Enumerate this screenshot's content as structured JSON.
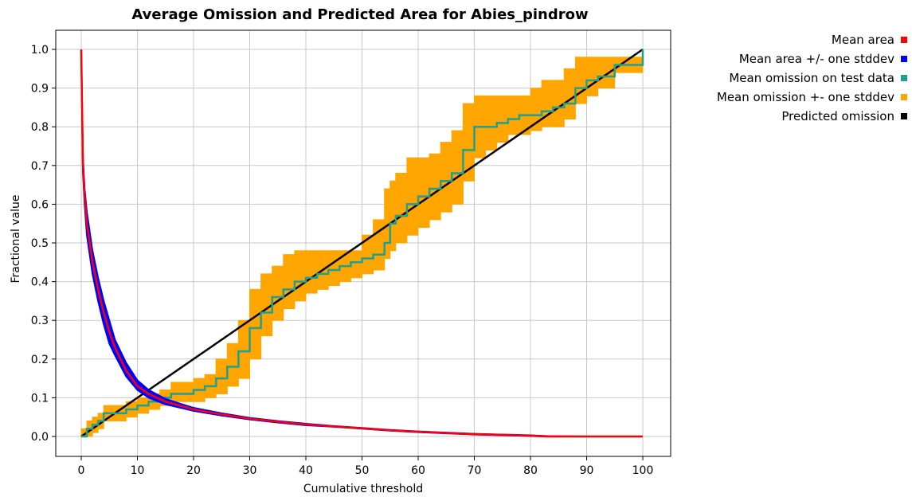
{
  "chart_data": {
    "type": "line",
    "title": "Average Omission and Predicted Area for Abies_pindrow",
    "xlabel": "Cumulative threshold",
    "ylabel": "Fractional value",
    "xlim": [
      0,
      100
    ],
    "ylim": [
      0,
      1
    ],
    "grid": true,
    "legend_position": "right",
    "x_ticks": [
      "0",
      "10",
      "20",
      "30",
      "40",
      "50",
      "60",
      "70",
      "80",
      "90",
      "100"
    ],
    "y_ticks": [
      "0.0",
      "0.1",
      "0.2",
      "0.3",
      "0.4",
      "0.5",
      "0.6",
      "0.7",
      "0.8",
      "0.9",
      "1.0"
    ],
    "legend": [
      {
        "label": "Mean area",
        "color": "#ff0000"
      },
      {
        "label": "Mean area +/- one stddev",
        "color": "#0000ff"
      },
      {
        "label": "Mean omission on test data",
        "color": "#20a090"
      },
      {
        "label": "Mean omission +- one stddev",
        "color": "#ffa500"
      },
      {
        "label": "Predicted omission",
        "color": "#000000"
      }
    ],
    "series": [
      {
        "name": "Mean area",
        "color": "#ff0000",
        "x": [
          0,
          0.3,
          0.6,
          1,
          2,
          3,
          4,
          5,
          6,
          8,
          10,
          12,
          15,
          18,
          20,
          25,
          30,
          35,
          40,
          45,
          50,
          55,
          60,
          65,
          70,
          75,
          80,
          83,
          90,
          100
        ],
        "y": [
          1.0,
          0.7,
          0.62,
          0.55,
          0.45,
          0.38,
          0.32,
          0.27,
          0.23,
          0.17,
          0.13,
          0.11,
          0.09,
          0.078,
          0.07,
          0.057,
          0.046,
          0.038,
          0.031,
          0.026,
          0.021,
          0.016,
          0.012,
          0.009,
          0.006,
          0.004,
          0.002,
          0.0,
          0.0,
          0.0
        ]
      },
      {
        "name": "Mean area +/- one stddev",
        "color": "#0000ff",
        "x": [
          0,
          0.3,
          0.6,
          1,
          2,
          3,
          4,
          5,
          6,
          8,
          10,
          12,
          15,
          18,
          20,
          25,
          30,
          35,
          40,
          45,
          50,
          55,
          60,
          65,
          70,
          75,
          80,
          83,
          90,
          100
        ],
        "upper": [
          1.0,
          0.72,
          0.64,
          0.58,
          0.48,
          0.41,
          0.35,
          0.3,
          0.25,
          0.19,
          0.145,
          0.12,
          0.097,
          0.083,
          0.074,
          0.06,
          0.048,
          0.04,
          0.033,
          0.027,
          0.022,
          0.017,
          0.013,
          0.01,
          0.007,
          0.005,
          0.003,
          0.001,
          0.0,
          0.0
        ],
        "lower": [
          1.0,
          0.68,
          0.6,
          0.52,
          0.42,
          0.35,
          0.29,
          0.24,
          0.21,
          0.155,
          0.12,
          0.1,
          0.083,
          0.073,
          0.066,
          0.054,
          0.044,
          0.036,
          0.029,
          0.025,
          0.02,
          0.015,
          0.011,
          0.008,
          0.005,
          0.003,
          0.001,
          0.0,
          0.0,
          0.0
        ]
      },
      {
        "name": "Mean omission on test data",
        "color": "#20a090",
        "x": [
          0,
          1,
          2,
          3,
          4,
          8,
          10,
          12,
          14,
          16,
          20,
          22,
          24,
          26,
          28,
          30,
          32,
          34,
          36,
          38,
          40,
          42,
          44,
          46,
          48,
          50,
          52,
          54,
          55,
          56,
          58,
          60,
          62,
          64,
          66,
          68,
          70,
          72,
          74,
          76,
          78,
          80,
          82,
          84,
          86,
          88,
          90,
          92,
          95,
          100
        ],
        "y": [
          0.0,
          0.02,
          0.03,
          0.04,
          0.06,
          0.07,
          0.08,
          0.09,
          0.1,
          0.11,
          0.12,
          0.13,
          0.15,
          0.18,
          0.22,
          0.28,
          0.32,
          0.36,
          0.38,
          0.4,
          0.41,
          0.42,
          0.43,
          0.44,
          0.45,
          0.46,
          0.47,
          0.5,
          0.55,
          0.57,
          0.6,
          0.62,
          0.64,
          0.66,
          0.68,
          0.74,
          0.8,
          0.8,
          0.81,
          0.82,
          0.83,
          0.83,
          0.84,
          0.85,
          0.86,
          0.9,
          0.92,
          0.93,
          0.96,
          1.0
        ]
      },
      {
        "name": "Mean omission +- one stddev",
        "color": "#ffa500",
        "x": [
          0,
          1,
          2,
          3,
          4,
          8,
          10,
          12,
          14,
          16,
          20,
          22,
          24,
          26,
          28,
          30,
          32,
          34,
          36,
          38,
          40,
          42,
          44,
          46,
          48,
          50,
          52,
          54,
          55,
          56,
          58,
          60,
          62,
          64,
          66,
          68,
          70,
          72,
          74,
          76,
          78,
          80,
          82,
          84,
          86,
          88,
          90,
          92,
          95,
          100
        ],
        "upper": [
          0.02,
          0.04,
          0.05,
          0.06,
          0.08,
          0.09,
          0.1,
          0.11,
          0.12,
          0.14,
          0.15,
          0.16,
          0.2,
          0.24,
          0.3,
          0.38,
          0.42,
          0.44,
          0.47,
          0.48,
          0.48,
          0.48,
          0.48,
          0.48,
          0.48,
          0.52,
          0.56,
          0.64,
          0.66,
          0.68,
          0.72,
          0.72,
          0.73,
          0.76,
          0.79,
          0.86,
          0.88,
          0.88,
          0.88,
          0.88,
          0.88,
          0.9,
          0.92,
          0.92,
          0.95,
          0.98,
          0.98,
          0.98,
          0.98,
          1.0
        ],
        "lower": [
          0.0,
          0.0,
          0.01,
          0.02,
          0.04,
          0.05,
          0.06,
          0.07,
          0.08,
          0.09,
          0.09,
          0.1,
          0.11,
          0.13,
          0.15,
          0.2,
          0.26,
          0.3,
          0.33,
          0.35,
          0.37,
          0.38,
          0.39,
          0.4,
          0.41,
          0.42,
          0.43,
          0.46,
          0.48,
          0.5,
          0.52,
          0.54,
          0.56,
          0.58,
          0.6,
          0.66,
          0.72,
          0.74,
          0.76,
          0.78,
          0.78,
          0.79,
          0.8,
          0.8,
          0.82,
          0.86,
          0.88,
          0.9,
          0.94,
          0.94
        ]
      },
      {
        "name": "Predicted omission",
        "color": "#000000",
        "x": [
          0,
          100
        ],
        "y": [
          0,
          1
        ]
      }
    ]
  }
}
